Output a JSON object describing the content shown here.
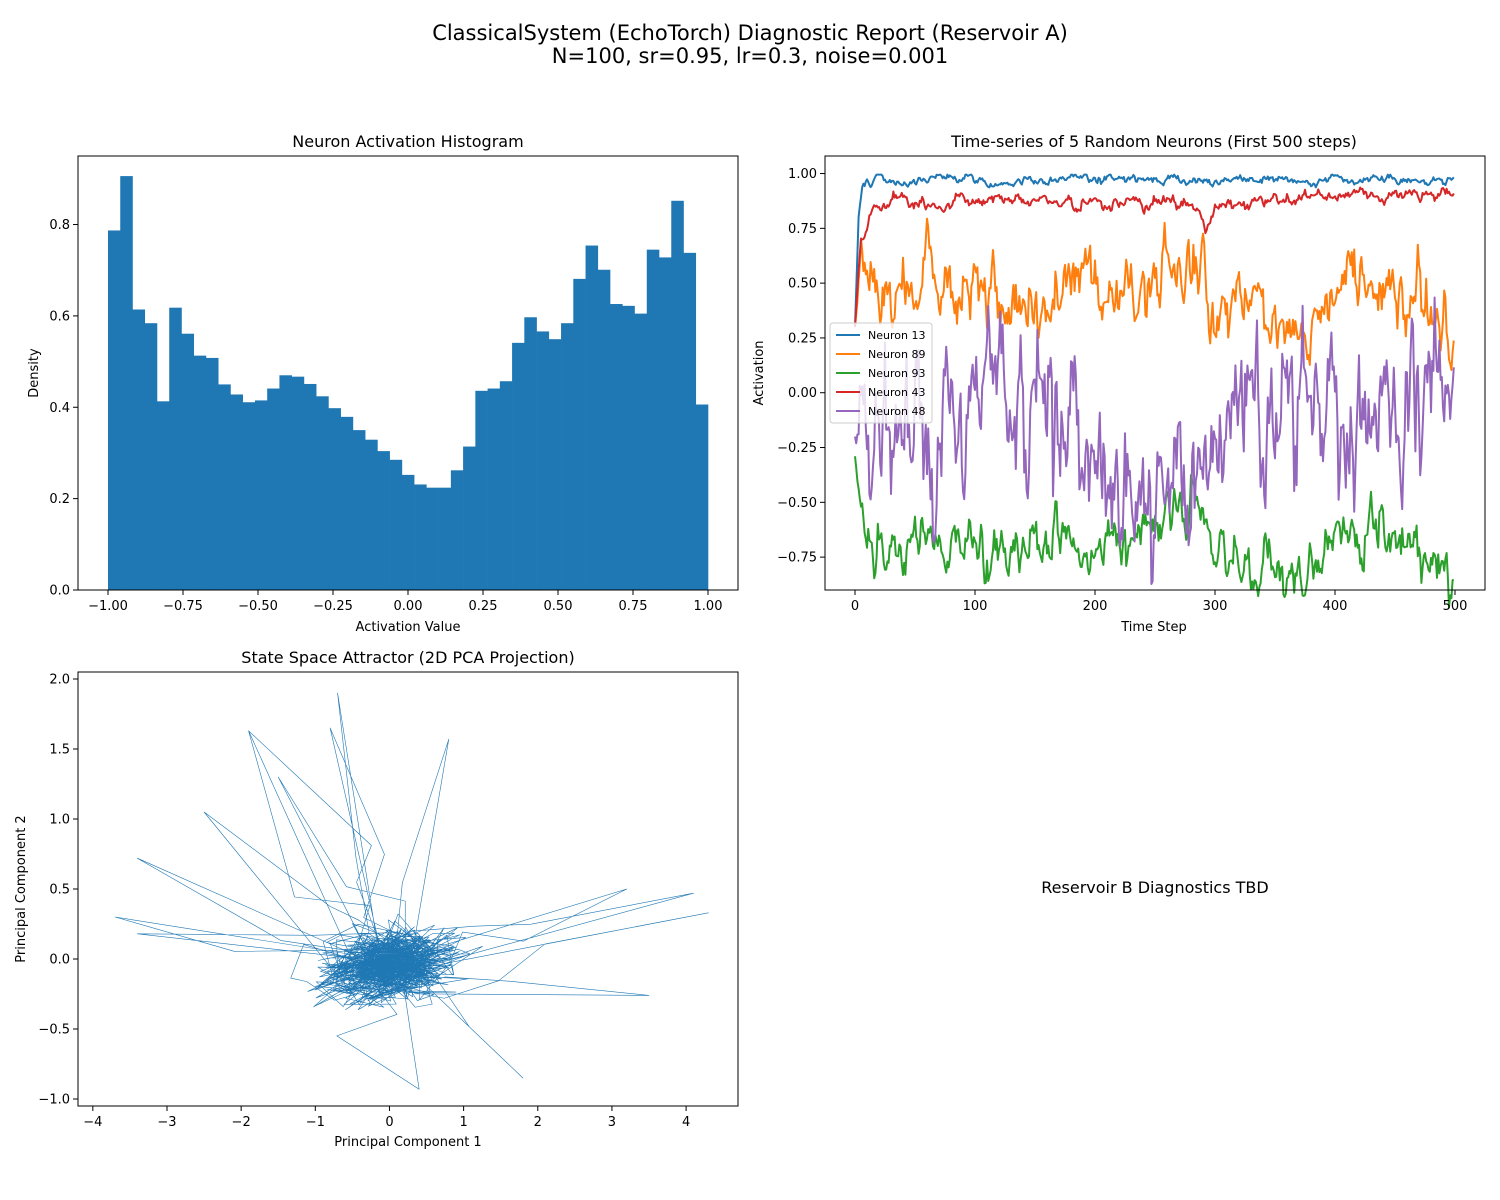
{
  "figure": {
    "title_line1": "ClassicalSystem (EchoTorch) Diagnostic Report (Reservoir A)",
    "title_line2": "N=100, sr=0.95, lr=0.3, noise=0.001",
    "placeholder_text": "Reservoir B Diagnostics TBD",
    "colors": {
      "c0": "#1f77b4",
      "c1": "#ff7f0e",
      "c2": "#2ca02c",
      "c3": "#d62728",
      "c4": "#9467bd"
    }
  },
  "chart_data": [
    {
      "type": "bar",
      "title": "Neuron Activation Histogram",
      "xlabel": "Activation Value",
      "ylabel": "Density",
      "xlim": [
        -1.1,
        1.1
      ],
      "ylim": [
        0,
        0.95
      ],
      "xticks": [
        -1.0,
        -0.75,
        -0.5,
        -0.25,
        0.0,
        0.25,
        0.5,
        0.75,
        1.0
      ],
      "xtick_labels": [
        "−1.00",
        "−0.75",
        "−0.50",
        "−0.25",
        "0.00",
        "0.25",
        "0.50",
        "0.75",
        "1.00"
      ],
      "yticks": [
        0.0,
        0.2,
        0.4,
        0.6,
        0.8
      ],
      "ytick_labels": [
        "0.0",
        "0.2",
        "0.4",
        "0.6",
        "0.8"
      ],
      "bin_start": -1.0,
      "bin_end": 1.0,
      "values": [
        0.787,
        0.906,
        0.614,
        0.584,
        0.413,
        0.618,
        0.561,
        0.513,
        0.508,
        0.45,
        0.428,
        0.411,
        0.415,
        0.441,
        0.47,
        0.467,
        0.451,
        0.424,
        0.398,
        0.379,
        0.35,
        0.329,
        0.304,
        0.285,
        0.252,
        0.231,
        0.224,
        0.224,
        0.262,
        0.314,
        0.436,
        0.441,
        0.457,
        0.541,
        0.597,
        0.566,
        0.549,
        0.584,
        0.681,
        0.754,
        0.701,
        0.626,
        0.622,
        0.605,
        0.745,
        0.728,
        0.852,
        0.738,
        0.406
      ]
    },
    {
      "type": "line",
      "title": "Time-series of 5 Random Neurons (First 500 steps)",
      "xlabel": "Time Step",
      "ylabel": "Activation",
      "xlim": [
        -25,
        525
      ],
      "ylim": [
        -0.9,
        1.08
      ],
      "xticks": [
        0,
        100,
        200,
        300,
        400,
        500
      ],
      "xtick_labels": [
        "0",
        "100",
        "200",
        "300",
        "400",
        "500"
      ],
      "yticks": [
        -0.75,
        -0.5,
        -0.25,
        0.0,
        0.25,
        0.5,
        0.75,
        1.0
      ],
      "ytick_labels": [
        "−0.75",
        "−0.50",
        "−0.25",
        "0.00",
        "0.25",
        "0.50",
        "0.75",
        "1.00"
      ],
      "legend_position": "center-left",
      "series": [
        {
          "name": "Neuron 13",
          "base": 0.975,
          "spread": 0.012,
          "x0": 0,
          "y0": 0.3,
          "keypoints": [
            [
              0,
              0.3
            ],
            [
              3,
              0.8
            ],
            [
              6,
              0.92
            ],
            [
              10,
              0.97
            ],
            [
              20,
              0.985
            ],
            [
              40,
              0.945
            ],
            [
              50,
              0.96
            ],
            [
              70,
              0.985
            ],
            [
              100,
              0.98
            ],
            [
              120,
              0.96
            ],
            [
              200,
              0.978
            ],
            [
              290,
              0.97
            ],
            [
              330,
              0.985
            ],
            [
              380,
              0.955
            ],
            [
              400,
              0.98
            ],
            [
              500,
              0.975
            ]
          ]
        },
        {
          "name": "Neuron 89",
          "base": 0.45,
          "spread": 0.09,
          "x0": 0,
          "y0": 0.3,
          "keypoints": [
            [
              0,
              0.3
            ],
            [
              5,
              0.6
            ],
            [
              10,
              0.5
            ],
            [
              30,
              0.45
            ],
            [
              60,
              0.55
            ],
            [
              100,
              0.4
            ],
            [
              200,
              0.48
            ],
            [
              290,
              0.6
            ],
            [
              300,
              0.3
            ],
            [
              320,
              0.4
            ],
            [
              380,
              0.3
            ],
            [
              400,
              0.55
            ],
            [
              500,
              0.3
            ]
          ]
        },
        {
          "name": "Neuron 93",
          "base": -0.72,
          "spread": 0.07,
          "x0": 0,
          "y0": -0.29,
          "keypoints": [
            [
              0,
              -0.29
            ],
            [
              5,
              -0.62
            ],
            [
              15,
              -0.72
            ],
            [
              40,
              -0.8
            ],
            [
              60,
              -0.62
            ],
            [
              100,
              -0.75
            ],
            [
              200,
              -0.7
            ],
            [
              290,
              -0.5
            ],
            [
              300,
              -0.72
            ],
            [
              385,
              -0.82
            ],
            [
              400,
              -0.62
            ],
            [
              500,
              -0.75
            ]
          ]
        },
        {
          "name": "Neuron 43",
          "base": 0.885,
          "spread": 0.018,
          "x0": 0,
          "y0": 0.3,
          "keypoints": [
            [
              0,
              0.3
            ],
            [
              5,
              0.72
            ],
            [
              15,
              0.85
            ],
            [
              30,
              0.9
            ],
            [
              60,
              0.86
            ],
            [
              100,
              0.88
            ],
            [
              200,
              0.87
            ],
            [
              280,
              0.86
            ],
            [
              292,
              0.73
            ],
            [
              300,
              0.86
            ],
            [
              400,
              0.9
            ],
            [
              500,
              0.9
            ]
          ]
        },
        {
          "name": "Neuron 48",
          "base": -0.15,
          "spread": 0.2,
          "x0": 0,
          "y0": -0.2,
          "keypoints": [
            [
              0,
              -0.2
            ],
            [
              40,
              -0.2
            ],
            [
              60,
              -0.35
            ],
            [
              100,
              -0.05
            ],
            [
              115,
              0.15
            ],
            [
              200,
              -0.2
            ],
            [
              290,
              -0.5
            ],
            [
              300,
              -0.1
            ],
            [
              380,
              0.05
            ],
            [
              400,
              -0.15
            ],
            [
              500,
              0.0
            ]
          ]
        }
      ]
    },
    {
      "type": "line",
      "title": "State Space Attractor (2D PCA Projection)",
      "xlabel": "Principal Component 1",
      "ylabel": "Principal Component 2",
      "xlim": [
        -4.2,
        4.7
      ],
      "ylim": [
        -1.05,
        2.05
      ],
      "xticks": [
        -4,
        -3,
        -2,
        -1,
        0,
        1,
        2,
        3,
        4
      ],
      "xtick_labels": [
        "−4",
        "−3",
        "−2",
        "−1",
        "0",
        "1",
        "2",
        "3",
        "4"
      ],
      "yticks": [
        -1.0,
        -0.5,
        0.0,
        0.5,
        1.0,
        1.5,
        2.0
      ],
      "ytick_labels": [
        "−1.0",
        "−0.5",
        "0.0",
        "0.5",
        "1.0",
        "1.5",
        "2.0"
      ],
      "series": [
        {
          "name": "",
          "center": [
            0.0,
            -0.05
          ],
          "spread": [
            1.1,
            0.35
          ],
          "count": 1000,
          "outliers": [
            [
              -1.9,
              1.63
            ],
            [
              -0.7,
              1.9
            ],
            [
              -0.8,
              1.65
            ],
            [
              -1.5,
              1.3
            ],
            [
              0.8,
              1.57
            ],
            [
              -3.7,
              0.3
            ],
            [
              -3.4,
              0.72
            ],
            [
              4.3,
              0.33
            ],
            [
              4.1,
              0.47
            ],
            [
              3.5,
              -0.26
            ],
            [
              -3.4,
              0.18
            ],
            [
              1.8,
              -0.85
            ],
            [
              0.4,
              -0.93
            ],
            [
              -2.5,
              1.05
            ],
            [
              3.2,
              0.5
            ]
          ]
        }
      ]
    }
  ]
}
